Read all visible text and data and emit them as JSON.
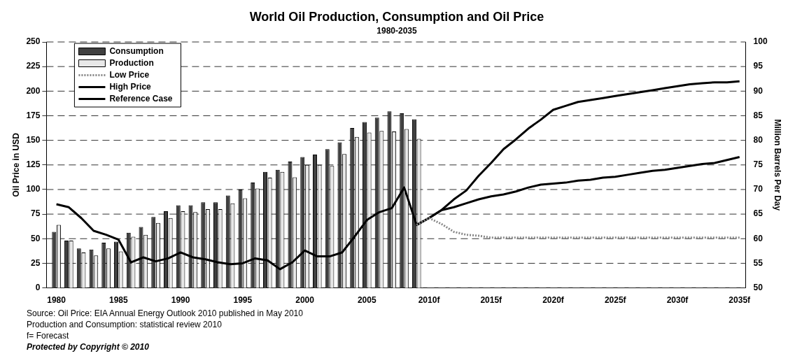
{
  "chart_data": {
    "type": "bar",
    "title": "World Oil Production, Consumption and Oil Price",
    "subtitle": "1980-2035",
    "ylabel": "Oil Price in USD",
    "y2label": "Million Barrels Per Day",
    "x": [
      1980,
      1981,
      1982,
      1983,
      1984,
      1985,
      1986,
      1987,
      1988,
      1989,
      1990,
      1991,
      1992,
      1993,
      1994,
      1995,
      1996,
      1997,
      1998,
      1999,
      2000,
      2001,
      2002,
      2003,
      2004,
      2005,
      2006,
      2007,
      2008,
      2009
    ],
    "series": [
      {
        "name": "Consumption",
        "axis": "y2",
        "color": "#404040",
        "values": [
          61.4,
          59.6,
          58,
          57.8,
          59.2,
          59.4,
          61.2,
          62.4,
          64.4,
          65.6,
          66.8,
          66.8,
          67.4,
          67.4,
          68.8,
          70,
          71.4,
          73.6,
          74,
          75.7,
          76.6,
          77.1,
          78.2,
          79.6,
          82.5,
          83.7,
          84.6,
          85.9,
          85.5,
          84.3
        ]
      },
      {
        "name": "Production",
        "axis": "y2",
        "color": "#e8e8e8",
        "values": [
          62.8,
          59.6,
          57.2,
          56.6,
          58,
          57.4,
          60.4,
          60.8,
          63.2,
          64.2,
          65.6,
          65.4,
          66,
          66,
          67.2,
          68.2,
          70.2,
          72.4,
          73.6,
          72.5,
          75,
          75,
          74.8,
          77.2,
          80.7,
          81.6,
          81.9,
          81.8,
          82.3,
          80.3
        ]
      },
      {
        "name": "Low Price",
        "type": "line",
        "color": "#888888",
        "line_style": "dotted",
        "x": [
          2009,
          2010,
          2011,
          2012,
          2013,
          2014,
          2015,
          2020,
          2025,
          2030,
          2035
        ],
        "values": [
          64,
          71,
          65,
          57,
          54,
          53,
          51,
          51,
          51,
          51,
          51
        ]
      },
      {
        "name": "High Price",
        "type": "line",
        "color": "#000000",
        "line_style": "solid",
        "x": [
          2009,
          2010,
          2011,
          2012,
          2013,
          2014,
          2015,
          2016,
          2017,
          2018,
          2019,
          2020,
          2021,
          2022,
          2023,
          2024,
          2025,
          2026,
          2027,
          2028,
          2029,
          2030,
          2031,
          2032,
          2033,
          2034,
          2035
        ],
        "values": [
          64,
          71,
          79,
          90,
          99,
          114,
          127,
          141,
          151,
          162,
          171,
          181,
          185,
          189,
          191,
          193,
          195,
          197,
          199,
          201,
          203,
          205,
          207,
          208,
          209,
          209,
          210
        ]
      },
      {
        "name": "Reference Case",
        "type": "line",
        "color": "#000000",
        "line_style": "solid",
        "x": [
          1980,
          1981,
          1982,
          1983,
          1984,
          1985,
          1986,
          1987,
          1988,
          1989,
          1990,
          1991,
          1992,
          1993,
          1994,
          1995,
          1996,
          1997,
          1998,
          1999,
          2000,
          2001,
          2002,
          2003,
          2004,
          2005,
          2006,
          2007,
          2008,
          2009,
          2010,
          2011,
          2012,
          2013,
          2014,
          2015,
          2016,
          2017,
          2018,
          2019,
          2020,
          2021,
          2022,
          2023,
          2024,
          2025,
          2026,
          2027,
          2028,
          2029,
          2030,
          2031,
          2032,
          2033,
          2034,
          2035
        ],
        "values": [
          85,
          82,
          71,
          58,
          54,
          49,
          26,
          31,
          27,
          30,
          36,
          31,
          29,
          26,
          24,
          25,
          30,
          28,
          19,
          26,
          38,
          32,
          32,
          36,
          52,
          69,
          77,
          81,
          102,
          64,
          71,
          79,
          82,
          86,
          90,
          93,
          95,
          98,
          102,
          105,
          106,
          107,
          109,
          110,
          112,
          113,
          115,
          117,
          119,
          120,
          122,
          124,
          126,
          127,
          130,
          133
        ]
      }
    ],
    "xlim": [
      1979.2,
      2035.5
    ],
    "xticks": [
      {
        "value": 1980,
        "label": "1980"
      },
      {
        "value": 1985,
        "label": "1985"
      },
      {
        "value": 1990,
        "label": "1990"
      },
      {
        "value": 1995,
        "label": "1995"
      },
      {
        "value": 2000,
        "label": "2000"
      },
      {
        "value": 2005,
        "label": "2005"
      },
      {
        "value": 2010,
        "label": "2010f"
      },
      {
        "value": 2015,
        "label": "2015f"
      },
      {
        "value": 2020,
        "label": "2020f"
      },
      {
        "value": 2025,
        "label": "2025f"
      },
      {
        "value": 2030,
        "label": "2030f"
      },
      {
        "value": 2035,
        "label": "2035f"
      }
    ],
    "ylim": [
      0,
      250
    ],
    "yticks": [
      0,
      25,
      50,
      75,
      100,
      125,
      150,
      175,
      200,
      225,
      250
    ],
    "y2lim": [
      50,
      100
    ],
    "y2ticks": [
      50,
      55,
      60,
      65,
      70,
      75,
      80,
      85,
      90,
      95,
      100
    ],
    "grid": "y",
    "legend": "top left",
    "annotations": [
      "Source: Oil Price: EIA Annual Energy Outlook 2010 published in May 2010",
      "Production and Consumption: statistical review 2010",
      "f= Forecast",
      "Protected by Copyright © 2010"
    ]
  }
}
